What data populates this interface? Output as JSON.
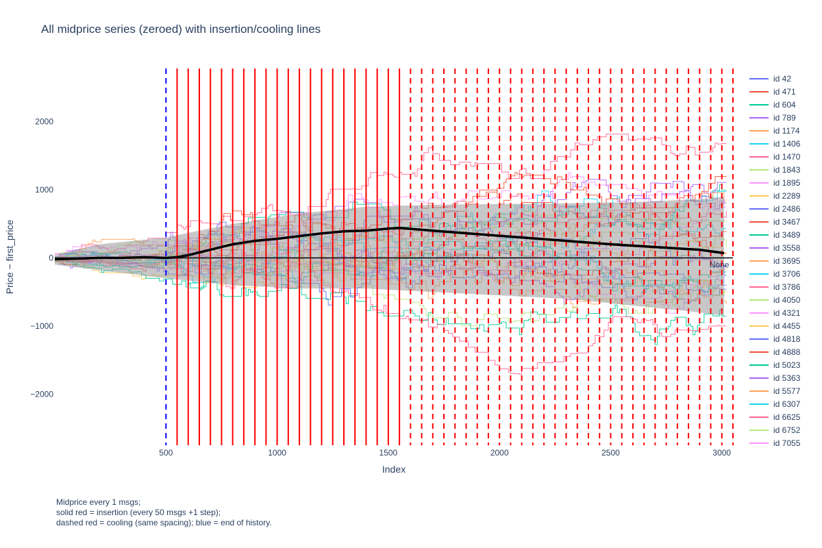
{
  "chart_data": {
    "type": "line",
    "title": "All midprice series (zeroed) with insertion/cooling lines",
    "xlabel": "Index",
    "ylabel": "Price − first_price",
    "xlim": [
      0,
      3050
    ],
    "ylim": [
      -2750,
      2780
    ],
    "x_ticks": [
      500,
      1000,
      1500,
      2000,
      2500,
      3000
    ],
    "x_tick_labels": [
      "500",
      "1000",
      "1500",
      "2000",
      "2500",
      "3000"
    ],
    "y_ticks": [
      2000,
      1000,
      0,
      -1000,
      -2000
    ],
    "y_tick_labels": [
      "2000",
      "1000",
      "0",
      "−1000",
      "−2000"
    ],
    "grid": false,
    "legend_position": "right",
    "series": [
      {
        "name": "id 42",
        "color": "#636efa"
      },
      {
        "name": "id 471",
        "color": "#EF553B"
      },
      {
        "name": "id 604",
        "color": "#00cc96"
      },
      {
        "name": "id 789",
        "color": "#ab63fa"
      },
      {
        "name": "id 1174",
        "color": "#FFA15A"
      },
      {
        "name": "id 1406",
        "color": "#19d3f3"
      },
      {
        "name": "id 1470",
        "color": "#FF6692"
      },
      {
        "name": "id 1843",
        "color": "#B6E880"
      },
      {
        "name": "id 1895",
        "color": "#FF97FF"
      },
      {
        "name": "id 2289",
        "color": "#FECB52"
      },
      {
        "name": "id 2486",
        "color": "#636efa"
      },
      {
        "name": "id 3467",
        "color": "#EF553B"
      },
      {
        "name": "id 3489",
        "color": "#00cc96"
      },
      {
        "name": "id 3558",
        "color": "#ab63fa"
      },
      {
        "name": "id 3695",
        "color": "#FFA15A"
      },
      {
        "name": "id 3706",
        "color": "#19d3f3"
      },
      {
        "name": "id 3786",
        "color": "#FF6692"
      },
      {
        "name": "id 4050",
        "color": "#B6E880"
      },
      {
        "name": "id 4321",
        "color": "#FF97FF"
      },
      {
        "name": "id 4455",
        "color": "#FECB52"
      },
      {
        "name": "id 4818",
        "color": "#636efa"
      },
      {
        "name": "id 4888",
        "color": "#EF553B"
      },
      {
        "name": "id 5023",
        "color": "#00cc96"
      },
      {
        "name": "id 5363",
        "color": "#ab63fa"
      },
      {
        "name": "id 5577",
        "color": "#FFA15A"
      },
      {
        "name": "id 6307",
        "color": "#19d3f3"
      },
      {
        "name": "id 6625",
        "color": "#FF6692"
      },
      {
        "name": "id 6752",
        "color": "#B6E880"
      },
      {
        "name": "id 7055",
        "color": "#FF97FF"
      }
    ],
    "mean_line": {
      "color": "#000000",
      "x": [
        0,
        100,
        200,
        300,
        400,
        500,
        550,
        600,
        700,
        800,
        900,
        1000,
        1100,
        1200,
        1300,
        1400,
        1500,
        1550,
        1700,
        1900,
        2100,
        2300,
        2500,
        2700,
        2900,
        3010
      ],
      "y": [
        -20,
        -10,
        0,
        0,
        10,
        0,
        10,
        40,
        120,
        200,
        250,
        280,
        320,
        360,
        390,
        400,
        430,
        440,
        400,
        350,
        300,
        250,
        200,
        160,
        120,
        70
      ]
    },
    "band": {
      "color": "#999999",
      "x": [
        0,
        200,
        500,
        800,
        1100,
        1400,
        1700,
        2000,
        2300,
        2600,
        2900,
        3010
      ],
      "upper": [
        40,
        200,
        300,
        500,
        650,
        750,
        780,
        790,
        800,
        820,
        860,
        900
      ],
      "lower": [
        -100,
        -180,
        -300,
        -400,
        -450,
        -450,
        -500,
        -550,
        -600,
        -700,
        -800,
        -850
      ]
    },
    "end_of_history_x": 500,
    "insertion_lines_x": [
      550,
      600,
      650,
      700,
      750,
      800,
      850,
      900,
      950,
      1000,
      1050,
      1100,
      1150,
      1200,
      1250,
      1300,
      1350,
      1400,
      1450,
      1500,
      1550
    ],
    "cooling_lines_x": [
      1600,
      1650,
      1700,
      1750,
      1800,
      1850,
      1900,
      1950,
      2000,
      2050,
      2100,
      2150,
      2200,
      2250,
      2300,
      2350,
      2400,
      2450,
      2500,
      2550,
      2600,
      2650,
      2700,
      2750,
      2800,
      2850,
      2900,
      2950,
      3000,
      3050
    ],
    "insertion_color": "#ff0000",
    "end_color": "#0000ff",
    "annotations": [
      {
        "text": "None",
        "x": 3000,
        "y": -100
      }
    ]
  },
  "footnote": {
    "line1": "Midprice every 1 msgs;",
    "line2": "solid red = insertion (every 50 msgs +1 step);",
    "line3": "dashed red = cooling (same spacing); blue = end of history."
  }
}
